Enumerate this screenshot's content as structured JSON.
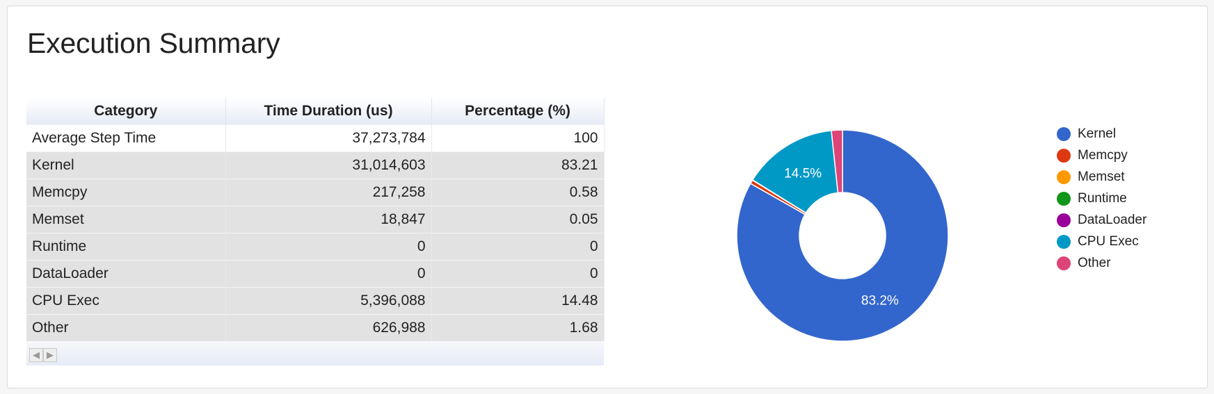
{
  "title": "Execution Summary",
  "table": {
    "columns": [
      "Category",
      "Time Duration (us)",
      "Percentage (%)"
    ],
    "rows": [
      {
        "category": "Average Step Time",
        "duration": "37,273,784",
        "percentage": "100"
      },
      {
        "category": "Kernel",
        "duration": "31,014,603",
        "percentage": "83.21"
      },
      {
        "category": "Memcpy",
        "duration": "217,258",
        "percentage": "0.58"
      },
      {
        "category": "Memset",
        "duration": "18,847",
        "percentage": "0.05"
      },
      {
        "category": "Runtime",
        "duration": "0",
        "percentage": "0"
      },
      {
        "category": "DataLoader",
        "duration": "0",
        "percentage": "0"
      },
      {
        "category": "CPU Exec",
        "duration": "5,396,088",
        "percentage": "14.48"
      },
      {
        "category": "Other",
        "duration": "626,988",
        "percentage": "1.68"
      }
    ],
    "pager": {
      "prev_icon": "triangle-left-icon",
      "next_icon": "triangle-right-icon"
    }
  },
  "chart_data": {
    "type": "pie",
    "donut": true,
    "legend_position": "right",
    "slice_labels_shown": [
      "83.2%",
      "14.5%"
    ],
    "categories": [
      "Kernel",
      "Memcpy",
      "Memset",
      "Runtime",
      "DataLoader",
      "CPU Exec",
      "Other"
    ],
    "values": [
      31014603,
      217258,
      18847,
      0,
      0,
      5396088,
      626988
    ],
    "percentages": [
      83.21,
      0.58,
      0.05,
      0,
      0,
      14.48,
      1.68
    ],
    "colors": [
      "#3366cc",
      "#dc3912",
      "#ff9900",
      "#109618",
      "#990099",
      "#0099c6",
      "#dd4477"
    ]
  }
}
